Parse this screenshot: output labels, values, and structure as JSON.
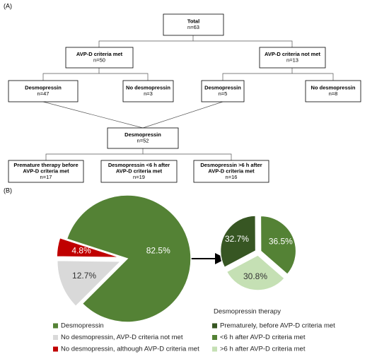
{
  "diagram": {
    "panel_label": "(A)",
    "nodes": [
      {
        "title": [
          "Total"
        ],
        "count": "n=63"
      },
      {
        "title": [
          "AVP-D criteria met"
        ],
        "count": "n=50"
      },
      {
        "title": [
          "AVP-D criteria not met"
        ],
        "count": "n=13"
      },
      {
        "title": [
          "Desmopressin"
        ],
        "count": "n=47"
      },
      {
        "title": [
          "No desmopressin"
        ],
        "count": "n=3"
      },
      {
        "title": [
          "Desmopressin"
        ],
        "count": "n=5"
      },
      {
        "title": [
          "No desmopressin"
        ],
        "count": "n=8"
      },
      {
        "title": [
          "Desmopressin"
        ],
        "count": "n=52"
      },
      {
        "title": [
          "Premature therapy before",
          "AVP-D criteria met"
        ],
        "count": "n=17"
      },
      {
        "title": [
          "Desmopressin <6 h after",
          "AVP-D criteria met"
        ],
        "count": "n=19"
      },
      {
        "title": [
          "Desmopressin >6 h after",
          "AVP-D criteria met"
        ],
        "count": "n=16"
      }
    ]
  },
  "panel_b_label": "(B)",
  "chart_data": [
    {
      "type": "pie",
      "categories": [
        "Desmopressin",
        "No desmopressin, AVP-D criteria not met",
        "No desmopressin, although AVP-D criteria met"
      ],
      "values": [
        82.5,
        12.7,
        4.8
      ],
      "value_labels": [
        "82.5%",
        "12.7%",
        "4.8%"
      ],
      "colors": [
        "#548235",
        "#d9d9d9",
        "#c00000"
      ]
    },
    {
      "type": "pie",
      "legend_title": "Desmopressin therapy",
      "categories": [
        "Prematurely, before AVP-D criteria met",
        "<6 h after AVP-D criteria met",
        ">6 h after AVP-D criteria met"
      ],
      "values": [
        32.7,
        36.5,
        30.8
      ],
      "value_labels": [
        "32.7%",
        "36.5%",
        "30.8%"
      ],
      "colors": [
        "#375623",
        "#548235",
        "#c5e0b4"
      ]
    }
  ]
}
